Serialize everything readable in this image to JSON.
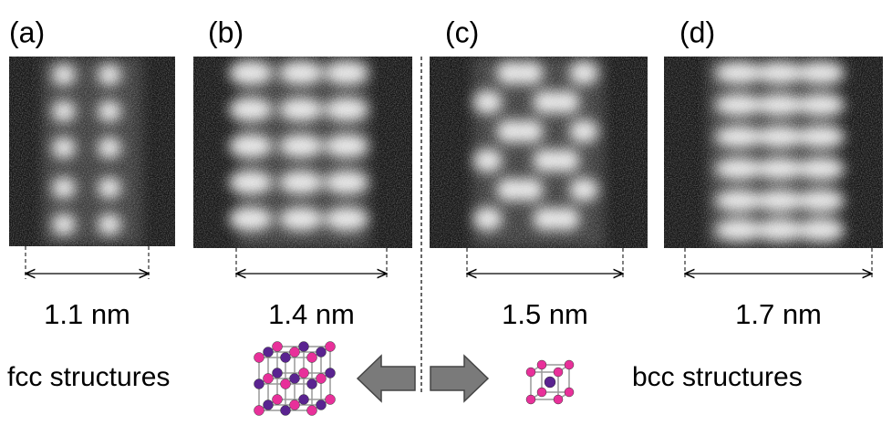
{
  "panels": [
    {
      "label": "(a)",
      "width": "1.1 nm"
    },
    {
      "label": "(b)",
      "width": "1.4 nm"
    },
    {
      "label": "(c)",
      "width": "1.5 nm"
    },
    {
      "label": "(d)",
      "width": "1.7 nm"
    }
  ],
  "fcc_label": "fcc structures",
  "bcc_label": "bcc structures"
}
